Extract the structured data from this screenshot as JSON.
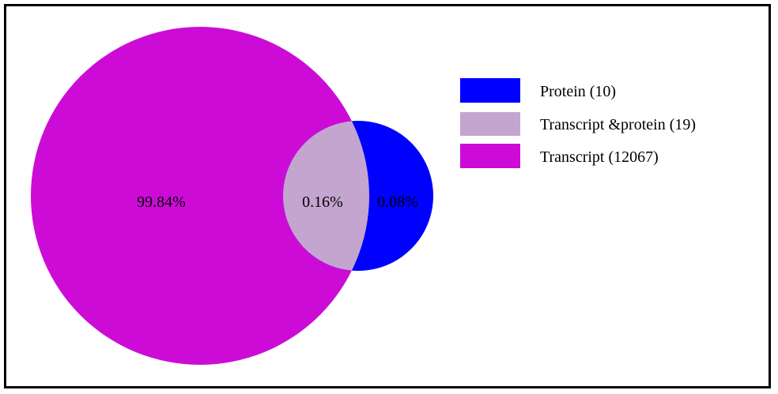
{
  "diagram": {
    "type": "venn",
    "sets": [
      {
        "name": "Transcript",
        "count": 12067,
        "color": "#cc0cd6"
      },
      {
        "name": "Protein",
        "count": 10,
        "color": "#0000ff"
      }
    ],
    "regions": {
      "transcript_only": {
        "label": "99.84%",
        "color": "#cc0cd6"
      },
      "intersection": {
        "label": "0.16%",
        "color": "#c4a5cf"
      },
      "protein_only": {
        "label": "0.08%",
        "color": "#0000ff"
      }
    },
    "legend": [
      {
        "label": "Protein (10)",
        "color": "#0000ff"
      },
      {
        "label": "Transcript &protein (19)",
        "color": "#c4a5cf"
      },
      {
        "label": "Transcript (12067)",
        "color": "#cc0cd6"
      }
    ],
    "legend_placement": "top-right"
  }
}
